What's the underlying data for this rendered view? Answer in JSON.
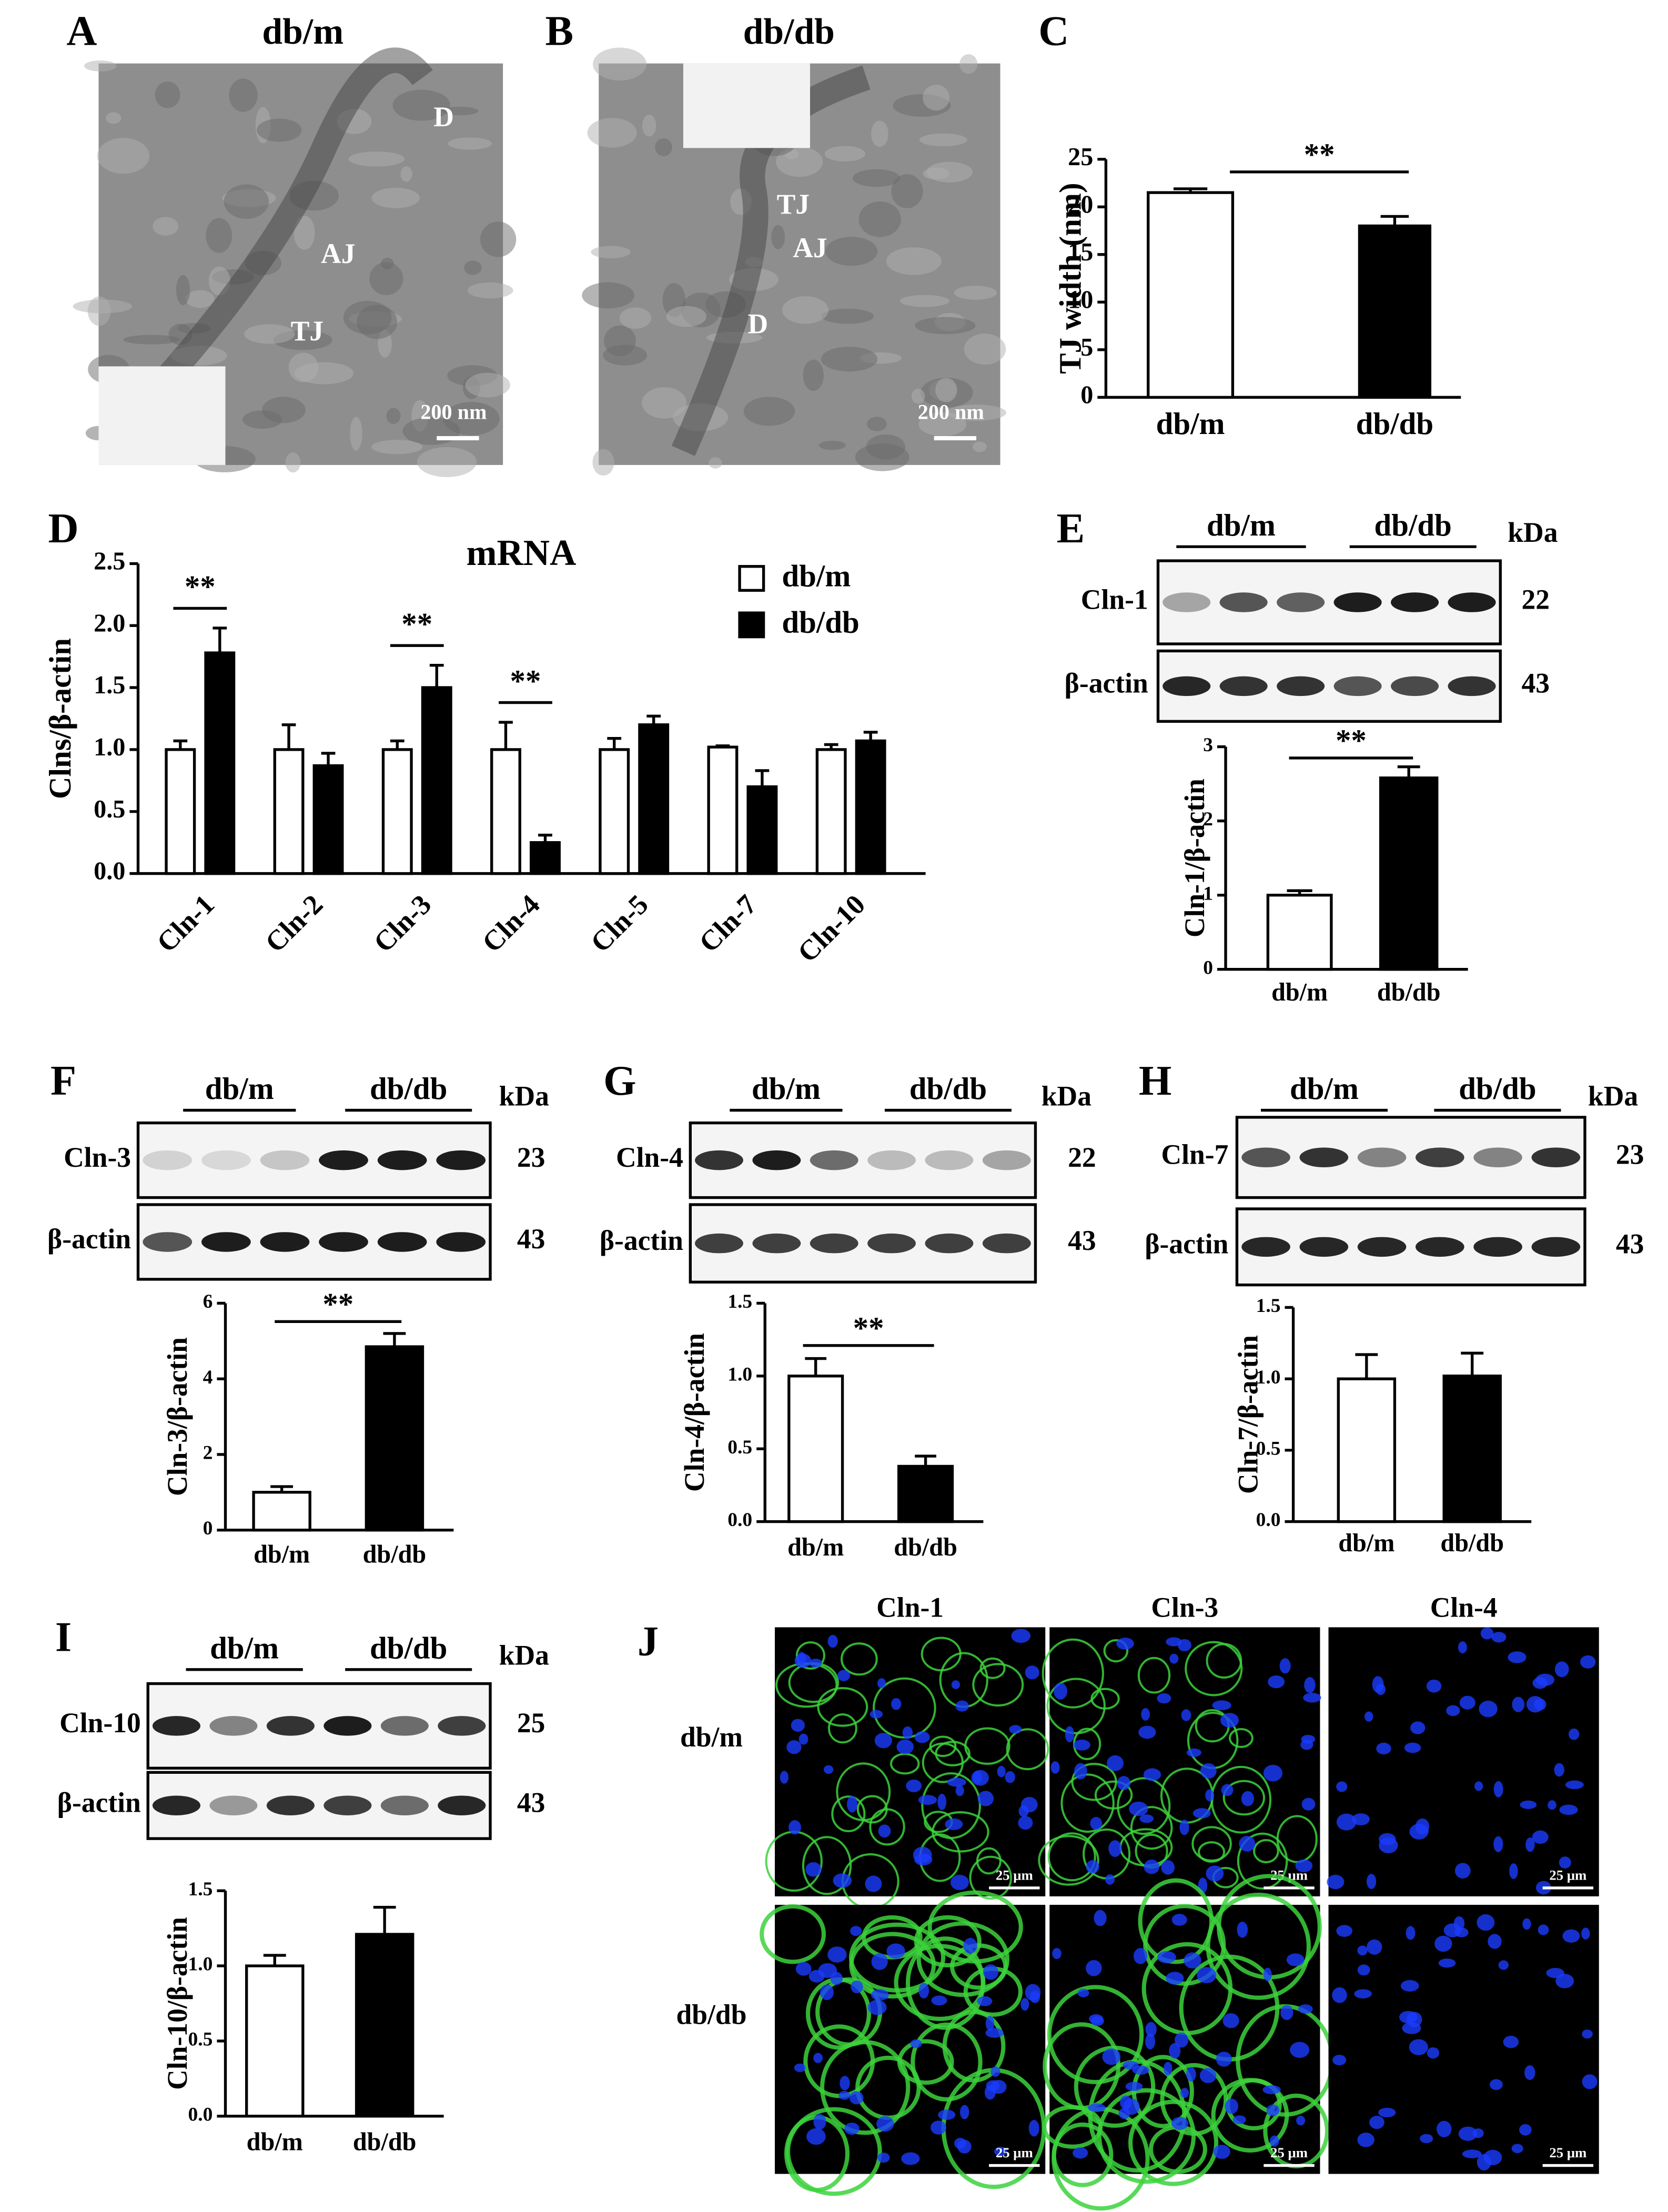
{
  "panel_labels": [
    "A",
    "B",
    "C",
    "D",
    "E",
    "F",
    "G",
    "H",
    "I",
    "J"
  ],
  "micrographs": [
    {
      "title": "db/m",
      "labels": [
        "D",
        "AJ",
        "TJ"
      ],
      "scale_bar": "200 nm"
    },
    {
      "title": "db/db",
      "labels": [
        "TJ",
        "AJ",
        "D"
      ],
      "scale_bar": "200 nm"
    }
  ],
  "blots": [
    {
      "groups": [
        "db/m",
        "db/db"
      ],
      "unit": "kDa",
      "rows": [
        {
          "protein": "Cln-1",
          "kda": 22
        },
        {
          "protein": "β-actin",
          "kda": 43
        }
      ]
    },
    {
      "groups": [
        "db/m",
        "db/db"
      ],
      "unit": "kDa",
      "rows": [
        {
          "protein": "Cln-3",
          "kda": 23
        },
        {
          "protein": "β-actin",
          "kda": 43
        }
      ]
    },
    {
      "groups": [
        "db/m",
        "db/db"
      ],
      "unit": "kDa",
      "rows": [
        {
          "protein": "Cln-4",
          "kda": 22
        },
        {
          "protein": "β-actin",
          "kda": 43
        }
      ]
    },
    {
      "groups": [
        "db/m",
        "db/db"
      ],
      "unit": "kDa",
      "rows": [
        {
          "protein": "Cln-7",
          "kda": 23
        },
        {
          "protein": "β-actin",
          "kda": 43
        }
      ]
    },
    {
      "groups": [
        "db/m",
        "db/db"
      ],
      "unit": "kDa",
      "rows": [
        {
          "protein": "Cln-10",
          "kda": 25
        },
        {
          "protein": "β-actin",
          "kda": 43
        }
      ]
    }
  ],
  "immunofluorescence": {
    "columns": [
      "Cln-1",
      "Cln-3",
      "Cln-4"
    ],
    "rows": [
      "db/m",
      "db/db"
    ],
    "scale_bar": "25 μm"
  },
  "chart_data": [
    {
      "type": "bar",
      "categories": [
        "db/m",
        "db/db"
      ],
      "values": [
        21.5,
        18
      ],
      "errors": [
        0.4,
        1.0
      ],
      "colors": [
        "#ffffff",
        "#000000"
      ],
      "ylabel": "TJ width (nm)",
      "ylim": [
        0,
        25
      ],
      "yticks": [
        0,
        5,
        10,
        15,
        20,
        25
      ],
      "significance": "**"
    },
    {
      "type": "grouped-bar",
      "title": "mRNA",
      "categories": [
        "Cln-1",
        "Cln-2",
        "Cln-3",
        "Cln-4",
        "Cln-5",
        "Cln-7",
        "Cln-10"
      ],
      "series": [
        {
          "name": "db/m",
          "color": "#ffffff",
          "values": [
            1,
            1,
            1,
            1,
            1,
            1.02,
            1
          ],
          "errors": [
            0.07,
            0.2,
            0.07,
            0.22,
            0.09,
            0.01,
            0.04
          ]
        },
        {
          "name": "db/db",
          "color": "#000000",
          "values": [
            1.78,
            0.87,
            1.5,
            0.25,
            1.2,
            0.7,
            1.07
          ],
          "errors": [
            0.2,
            0.1,
            0.18,
            0.06,
            0.07,
            0.13,
            0.07
          ]
        }
      ],
      "ylabel": "Clns/β-actin",
      "ylim": [
        0,
        2.5
      ],
      "yticks": [
        {
          "value": 0,
          "label": "0.0"
        },
        0.5,
        {
          "value": 1,
          "label": "1.0"
        },
        1.5,
        {
          "value": 2,
          "label": "2.0"
        },
        2.5
      ],
      "legend": "top-right",
      "significance": [
        "**",
        null,
        "**",
        "**",
        null,
        null,
        null
      ]
    },
    {
      "type": "bar",
      "categories": [
        "db/m",
        "db/db"
      ],
      "values": [
        1,
        2.58
      ],
      "errors": [
        0.06,
        0.15
      ],
      "colors": [
        "#ffffff",
        "#000000"
      ],
      "ylabel": "Cln-1/β-actin",
      "ylim": [
        0,
        3
      ],
      "yticks": [
        0,
        1,
        2,
        3
      ],
      "significance": "**"
    },
    {
      "type": "bar",
      "categories": [
        "db/m",
        "db/db"
      ],
      "values": [
        1,
        4.85
      ],
      "errors": [
        0.15,
        0.35
      ],
      "colors": [
        "#ffffff",
        "#000000"
      ],
      "ylabel": "Cln-3/β-actin",
      "ylim": [
        0,
        6
      ],
      "yticks": [
        0,
        2,
        4,
        6
      ],
      "significance": "**"
    },
    {
      "type": "bar",
      "categories": [
        "db/m",
        "db/db"
      ],
      "values": [
        1,
        0.38
      ],
      "errors": [
        0.12,
        0.07
      ],
      "colors": [
        "#ffffff",
        "#000000"
      ],
      "ylabel": "Cln-4/β-actin",
      "ylim": [
        0,
        1.5
      ],
      "yticks": [
        {
          "value": 0,
          "label": "0.0"
        },
        0.5,
        {
          "value": 1,
          "label": "1.0"
        },
        1.5
      ],
      "significance": "**"
    },
    {
      "type": "bar",
      "categories": [
        "db/m",
        "db/db"
      ],
      "values": [
        1,
        1.02
      ],
      "errors": [
        0.17,
        0.16
      ],
      "colors": [
        "#ffffff",
        "#000000"
      ],
      "ylabel": "Cln-7/β-actin",
      "ylim": [
        0,
        1.5
      ],
      "yticks": [
        {
          "value": 0,
          "label": "0.0"
        },
        0.5,
        {
          "value": 1,
          "label": "1.0"
        },
        1.5
      ]
    },
    {
      "type": "bar",
      "categories": [
        "db/m",
        "db/db"
      ],
      "values": [
        1,
        1.21
      ],
      "errors": [
        0.07,
        0.18
      ],
      "colors": [
        "#ffffff",
        "#000000"
      ],
      "ylabel": "Cln-10/β-actin",
      "ylim": [
        0,
        1.5
      ],
      "yticks": [
        {
          "value": 0,
          "label": "0.0"
        },
        0.5,
        {
          "value": 1,
          "label": "1.0"
        },
        1.5
      ]
    }
  ]
}
